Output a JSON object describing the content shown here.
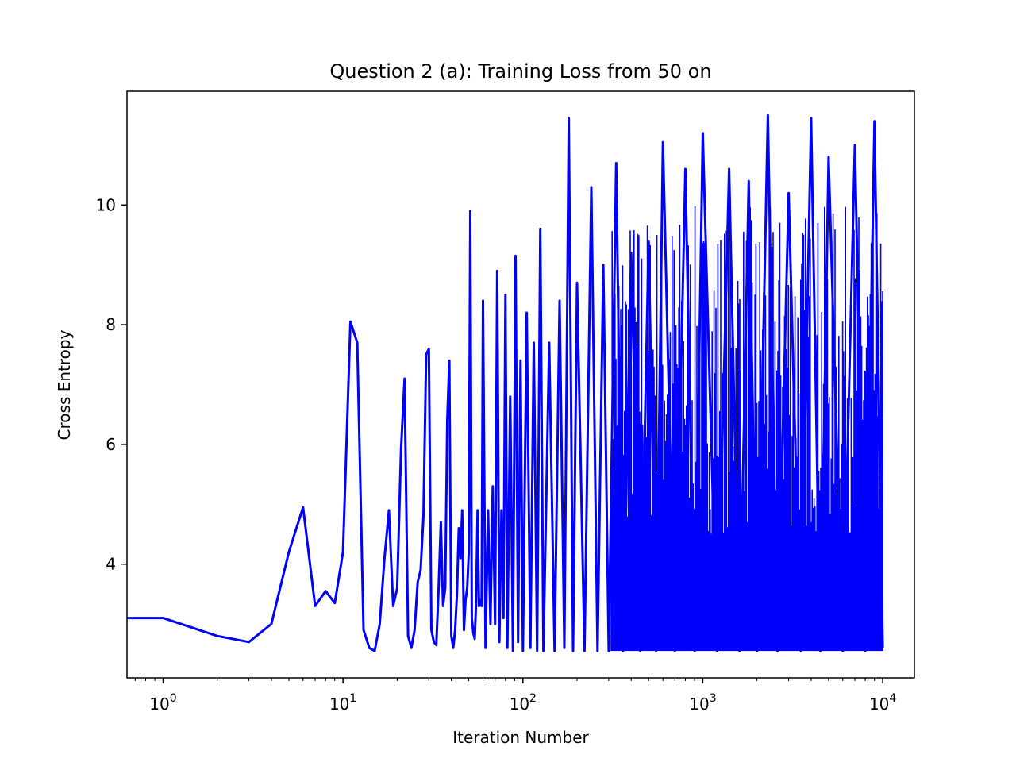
{
  "chart_data": {
    "type": "line",
    "title": "Question 2 (a): Training Loss from 50 on",
    "xlabel": "Iteration Number",
    "ylabel": "Cross Entropy",
    "xscale": "log",
    "xlim": [
      0.63,
      15000
    ],
    "ylim": [
      2.1,
      11.9
    ],
    "x_ticks": [
      {
        "value": 1,
        "base": "10",
        "exp": "0"
      },
      {
        "value": 10,
        "base": "10",
        "exp": "1"
      },
      {
        "value": 100,
        "base": "10",
        "exp": "2"
      },
      {
        "value": 1000,
        "base": "10",
        "exp": "3"
      },
      {
        "value": 10000,
        "base": "10",
        "exp": "4"
      }
    ],
    "y_ticks": [
      {
        "value": 4,
        "label": "4"
      },
      {
        "value": 6,
        "label": "6"
      },
      {
        "value": 8,
        "label": "8"
      },
      {
        "value": 10,
        "label": "10"
      }
    ],
    "grid": false,
    "color": "#0000ff",
    "series": [
      {
        "x": [
          0,
          1,
          2,
          3,
          4,
          5,
          6,
          7,
          8,
          9,
          10,
          11,
          12,
          13,
          14,
          15,
          16,
          17,
          18,
          19,
          20,
          21,
          22,
          23,
          24,
          25,
          26,
          27,
          28,
          29,
          30,
          31,
          32,
          33,
          34,
          35,
          36,
          37,
          38,
          39,
          40,
          41,
          42,
          43,
          44,
          45,
          46,
          47,
          48,
          49,
          50,
          51,
          52,
          53,
          54,
          55,
          56,
          57,
          58,
          59,
          60,
          62,
          64,
          66,
          68,
          70,
          72,
          74,
          76,
          78,
          80,
          82,
          85,
          88,
          91,
          94,
          97,
          100,
          105,
          110,
          115,
          120,
          125,
          130,
          140,
          150,
          160,
          170,
          180,
          190,
          200,
          220,
          240,
          260,
          280,
          300,
          330,
          360,
          400,
          450,
          500,
          550,
          600,
          700,
          800,
          900,
          1000,
          1200,
          1400,
          1600,
          1800,
          2000,
          2300,
          2600,
          3000,
          3500,
          4000,
          4500,
          5000,
          6000,
          7000,
          8000,
          9000,
          10000
        ],
        "y": [
          3.1,
          3.1,
          2.8,
          2.7,
          3.0,
          4.2,
          4.95,
          3.3,
          3.55,
          3.35,
          4.2,
          8.05,
          7.7,
          2.9,
          2.6,
          2.55,
          3.0,
          4.1,
          4.9,
          3.3,
          3.6,
          5.9,
          7.1,
          2.8,
          2.6,
          2.9,
          3.7,
          3.9,
          4.8,
          7.5,
          7.6,
          2.9,
          2.7,
          2.65,
          3.6,
          4.7,
          3.3,
          3.6,
          6.4,
          7.4,
          2.8,
          2.6,
          2.9,
          3.5,
          4.6,
          4.1,
          4.9,
          2.9,
          3.4,
          3.6,
          4.2,
          9.9,
          3.1,
          2.85,
          2.75,
          3.4,
          4.9,
          3.3,
          3.4,
          3.3,
          8.4,
          2.6,
          4.9,
          3.0,
          5.3,
          3.0,
          8.9,
          2.7,
          4.9,
          3.1,
          8.5,
          2.6,
          6.8,
          2.55,
          9.15,
          2.7,
          7.4,
          2.55,
          8.2,
          2.6,
          7.7,
          2.55,
          9.6,
          2.55,
          7.7,
          2.55,
          8.4,
          2.6,
          11.45,
          2.55,
          8.7,
          2.55,
          10.3,
          2.55,
          9.0,
          2.55,
          10.7,
          2.55,
          9.2,
          2.55,
          9.4,
          2.55,
          11.05,
          2.55,
          10.6,
          2.55,
          11.2,
          2.55,
          10.6,
          2.55,
          10.4,
          2.55,
          11.5,
          2.55,
          10.2,
          2.55,
          11.45,
          2.55,
          10.8,
          2.55,
          11.0,
          2.55,
          11.4,
          2.6
        ]
      }
    ]
  }
}
